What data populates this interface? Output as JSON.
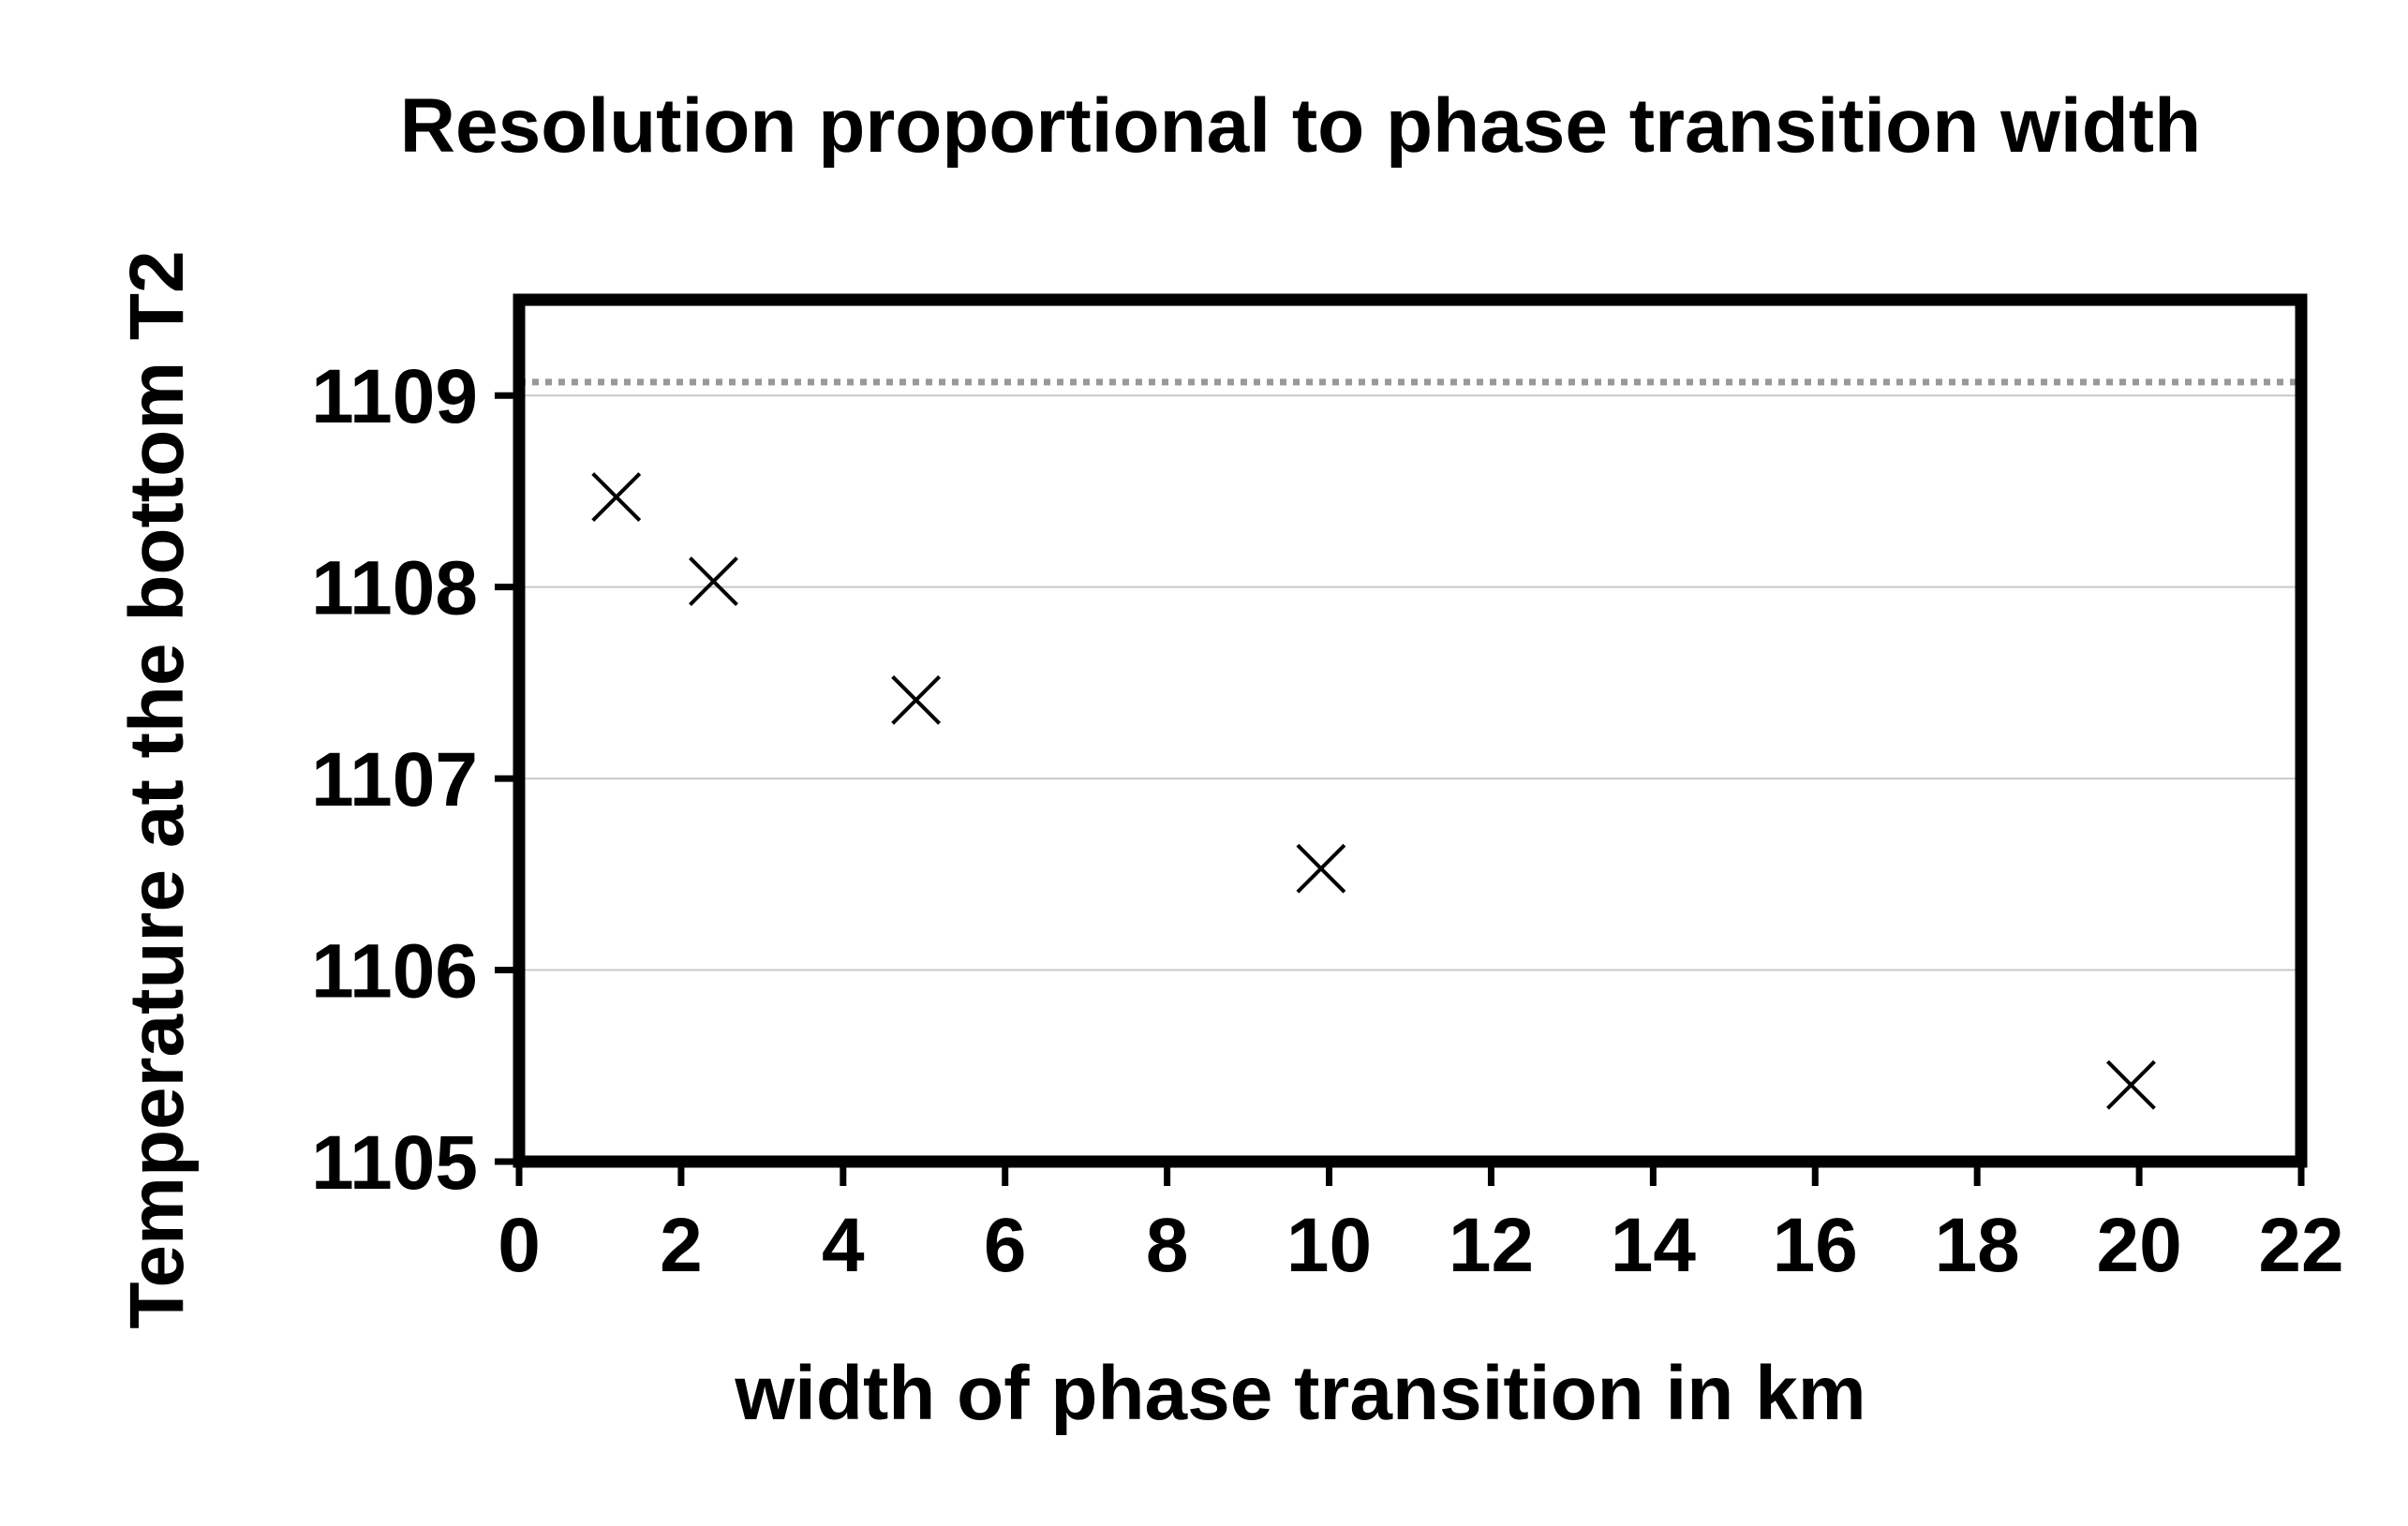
{
  "chart_data": {
    "type": "scatter",
    "title": "Resolution proportional to phase transition width",
    "xlabel": "width of phase transition in km",
    "ylabel": "Temperature at the bottom T2",
    "xlim": [
      0,
      22
    ],
    "ylim": [
      1105,
      1109.5
    ],
    "x_ticks": [
      "0",
      "2",
      "4",
      "6",
      "8",
      "10",
      "12",
      "14",
      "16",
      "18",
      "20",
      "22"
    ],
    "y_ticks": [
      "1105",
      "1106",
      "1107",
      "1108",
      "1109"
    ],
    "grid": "horizontal",
    "legend": "none",
    "reference_line": {
      "y": 1109.07,
      "style": "dotted",
      "color": "#999999"
    },
    "series": [
      {
        "marker": "x",
        "color": "#000000",
        "x": [
          1.2,
          2.4,
          4.9,
          9.9,
          19.9
        ],
        "y": [
          1108.47,
          1108.03,
          1107.41,
          1106.53,
          1105.4
        ]
      }
    ]
  }
}
